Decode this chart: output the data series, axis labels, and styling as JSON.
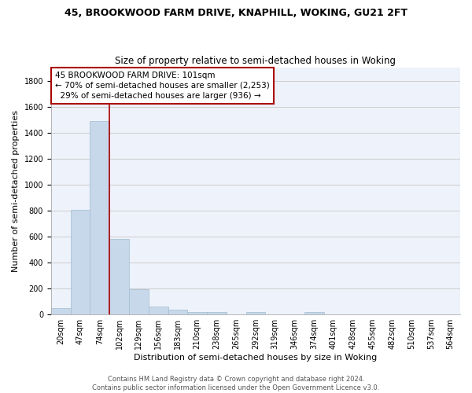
{
  "title": "45, BROOKWOOD FARM DRIVE, KNAPHILL, WOKING, GU21 2FT",
  "subtitle": "Size of property relative to semi-detached houses in Woking",
  "xlabel": "Distribution of semi-detached houses by size in Woking",
  "ylabel": "Number of semi-detached properties",
  "bar_color": "#c8d8eb",
  "bar_edge_color": "#a0bcd0",
  "vline_color": "#aa0000",
  "annotation_text": "45 BROOKWOOD FARM DRIVE: 101sqm\n← 70% of semi-detached houses are smaller (2,253)\n  29% of semi-detached houses are larger (936) →",
  "categories": [
    "20sqm",
    "47sqm",
    "74sqm",
    "102sqm",
    "129sqm",
    "156sqm",
    "183sqm",
    "210sqm",
    "238sqm",
    "265sqm",
    "292sqm",
    "319sqm",
    "346sqm",
    "374sqm",
    "401sqm",
    "428sqm",
    "455sqm",
    "482sqm",
    "510sqm",
    "537sqm",
    "564sqm"
  ],
  "bar_values": [
    50,
    805,
    1490,
    580,
    193,
    60,
    40,
    20,
    20,
    0,
    20,
    0,
    0,
    20,
    0,
    0,
    0,
    0,
    0,
    0,
    0
  ],
  "ylim": [
    0,
    1900
  ],
  "yticks": [
    0,
    200,
    400,
    600,
    800,
    1000,
    1200,
    1400,
    1600,
    1800
  ],
  "footer_text": "Contains HM Land Registry data © Crown copyright and database right 2024.\nContains public sector information licensed under the Open Government Licence v3.0.",
  "bg_color": "#eef2fa",
  "grid_color": "#c8c8c8",
  "title_fontsize": 9,
  "subtitle_fontsize": 8.5,
  "axis_label_fontsize": 8,
  "tick_fontsize": 7,
  "annotation_fontsize": 7.5,
  "footer_fontsize": 6
}
